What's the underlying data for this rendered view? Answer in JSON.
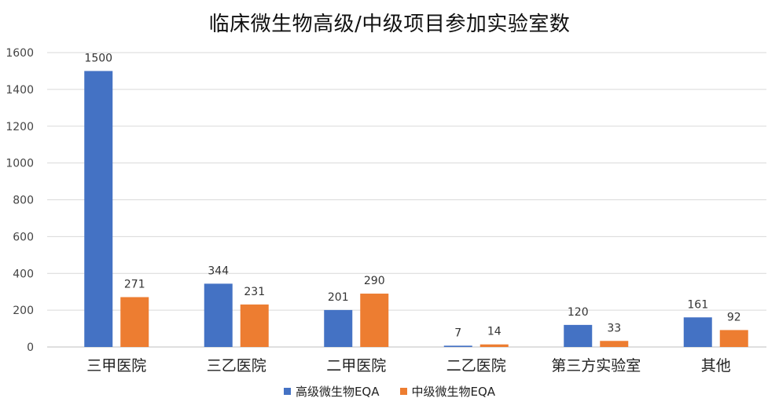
{
  "chart_data": {
    "type": "bar",
    "title": "临床微生物高级/中级项目参加实验室数",
    "categories": [
      "三甲医院",
      "三乙医院",
      "二甲医院",
      "二乙医院",
      "第三方实验室",
      "其他"
    ],
    "series": [
      {
        "name": "高级微生物EQA",
        "color": "#4472C4",
        "values": [
          1500,
          344,
          201,
          7,
          120,
          161
        ]
      },
      {
        "name": "中级微生物EQA",
        "color": "#ED7D31",
        "values": [
          271,
          231,
          290,
          14,
          33,
          92
        ]
      }
    ],
    "ylim": [
      0,
      1600
    ],
    "yticks": [
      0,
      200,
      400,
      600,
      800,
      1000,
      1200,
      1400,
      1600
    ],
    "grid": true,
    "legend_position": "bottom",
    "data_labels": true
  }
}
